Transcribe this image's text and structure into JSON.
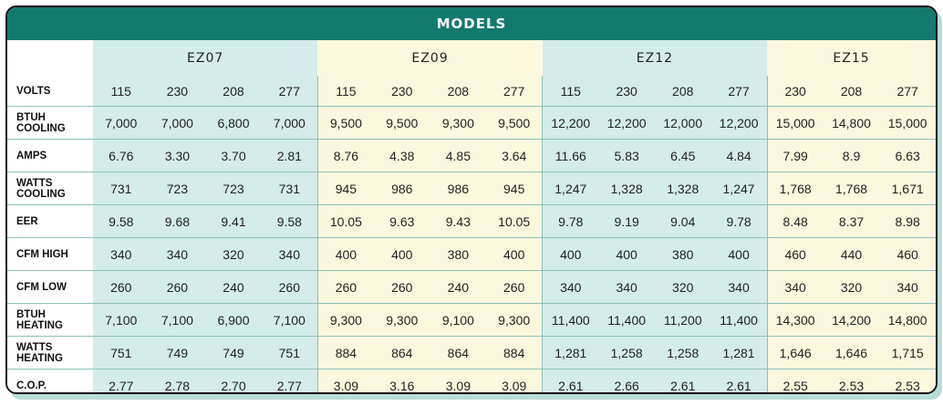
{
  "header": {
    "title": "MODELS"
  },
  "models": [
    "EZ07",
    "EZ09",
    "EZ12",
    "EZ15"
  ],
  "volts": {
    "label": "VOLTS",
    "values": [
      "115",
      "230",
      "208",
      "277",
      "115",
      "230",
      "208",
      "277",
      "115",
      "230",
      "208",
      "277",
      "230",
      "208",
      "277"
    ]
  },
  "rows": [
    {
      "label": [
        "BTUH",
        "COOLING"
      ],
      "values": [
        "7,000",
        "7,000",
        "6,800",
        "7,000",
        "9,500",
        "9,500",
        "9,300",
        "9,500",
        "12,200",
        "12,200",
        "12,000",
        "12,200",
        "15,000",
        "14,800",
        "15,000"
      ]
    },
    {
      "label": [
        "AMPS"
      ],
      "values": [
        "6.76",
        "3.30",
        "3.70",
        "2.81",
        "8.76",
        "4.38",
        "4.85",
        "3.64",
        "11.66",
        "5.83",
        "6.45",
        "4.84",
        "7.99",
        "8.9",
        "6.63"
      ]
    },
    {
      "label": [
        "WATTS",
        "COOLING"
      ],
      "values": [
        "731",
        "723",
        "723",
        "731",
        "945",
        "986",
        "986",
        "945",
        "1,247",
        "1,328",
        "1,328",
        "1,247",
        "1,768",
        "1,768",
        "1,671"
      ]
    },
    {
      "label": [
        "EER"
      ],
      "values": [
        "9.58",
        "9.68",
        "9.41",
        "9.58",
        "10.05",
        "9.63",
        "9.43",
        "10.05",
        "9.78",
        "9.19",
        "9.04",
        "9.78",
        "8.48",
        "8.37",
        "8.98"
      ]
    },
    {
      "label": [
        "CFM HIGH"
      ],
      "values": [
        "340",
        "340",
        "320",
        "340",
        "400",
        "400",
        "380",
        "400",
        "400",
        "400",
        "380",
        "400",
        "460",
        "440",
        "460"
      ]
    },
    {
      "label": [
        "CFM LOW"
      ],
      "values": [
        "260",
        "260",
        "240",
        "260",
        "260",
        "260",
        "240",
        "260",
        "340",
        "340",
        "320",
        "340",
        "340",
        "320",
        "340"
      ]
    },
    {
      "label": [
        "BTUH",
        "HEATING"
      ],
      "values": [
        "7,100",
        "7,100",
        "6,900",
        "7,100",
        "9,300",
        "9,300",
        "9,100",
        "9,300",
        "11,400",
        "11,400",
        "11,200",
        "11,400",
        "14,300",
        "14,200",
        "14,800"
      ]
    },
    {
      "label": [
        "WATTS",
        "HEATING"
      ],
      "values": [
        "751",
        "749",
        "749",
        "751",
        "884",
        "864",
        "864",
        "884",
        "1,281",
        "1,258",
        "1,258",
        "1,281",
        "1,646",
        "1,646",
        "1,715"
      ]
    },
    {
      "label": [
        "C.O.P."
      ],
      "values": [
        "2.77",
        "2.78",
        "2.70",
        "2.77",
        "3.09",
        "3.16",
        "3.09",
        "3.09",
        "2.61",
        "2.66",
        "2.61",
        "2.61",
        "2.55",
        "2.53",
        "2.53"
      ]
    }
  ],
  "colors": {
    "header": "#127a6c",
    "group_a": "#d4eceb",
    "group_b": "#fcf8de",
    "rule": "#8fc0b8",
    "shadow": "#b9dcd8"
  }
}
